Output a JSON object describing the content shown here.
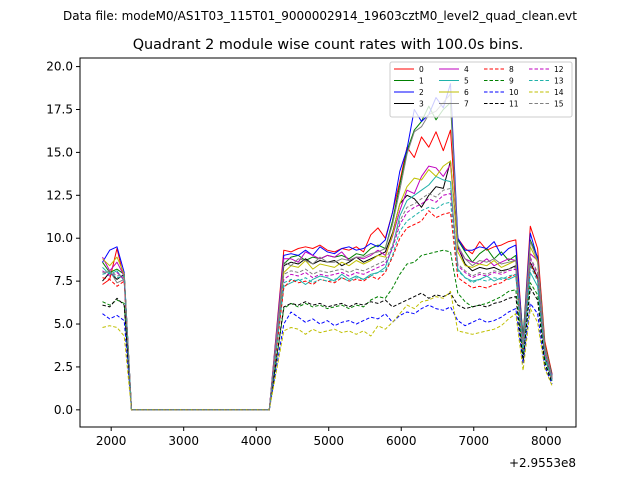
{
  "header": {
    "datafile": "Data file: modeM0/AS1T03_115T01_9000002914_19603cztM0_level2_quad_clean.evt",
    "title": "Quadrant 2 module wise count rates with 100.0s bins."
  },
  "chart_data": {
    "type": "line",
    "title": "Quadrant 2 module wise count rates with 100.0s bins.",
    "xlabel": "",
    "ylabel": "",
    "x_offset_label": "+2.9553e8",
    "xlim": [
      1570,
      8410
    ],
    "ylim": [
      -1.0,
      20.5
    ],
    "xticks": [
      2000,
      3000,
      4000,
      5000,
      6000,
      7000,
      8000
    ],
    "yticks": [
      0.0,
      2.5,
      5.0,
      7.5,
      10.0,
      12.5,
      15.0,
      17.5,
      20.0
    ],
    "ytick_labels": [
      "0.0",
      "2.5",
      "5.0",
      "7.5",
      "10.0",
      "12.5",
      "15.0",
      "17.5",
      "20.0"
    ],
    "grid": false,
    "legend": "top-right",
    "x": [
      1880,
      1980,
      2080,
      2180,
      2280,
      2380,
      2480,
      2580,
      2680,
      2780,
      2880,
      2980,
      3080,
      3180,
      3280,
      3380,
      3480,
      3580,
      3680,
      3780,
      3880,
      3980,
      4080,
      4180,
      4380,
      4480,
      4580,
      4680,
      4780,
      4880,
      4980,
      5080,
      5180,
      5280,
      5380,
      5480,
      5580,
      5680,
      5780,
      5880,
      5980,
      6080,
      6180,
      6280,
      6380,
      6480,
      6580,
      6680,
      6780,
      6880,
      6980,
      7080,
      7180,
      7280,
      7380,
      7480,
      7580,
      7680,
      7780,
      7880,
      7980,
      8080
    ],
    "series": [
      {
        "name": "0",
        "color": "#ff0000",
        "dash": "solid",
        "values": [
          7.3,
          7.6,
          9.4,
          7.6,
          0,
          0,
          0,
          0,
          0,
          0,
          0,
          0,
          0,
          0,
          0,
          0,
          0,
          0,
          0,
          0,
          0,
          0,
          0,
          0,
          9.3,
          9.2,
          9.4,
          9.5,
          9.4,
          9.6,
          9.3,
          9.2,
          9.4,
          9.3,
          9.5,
          9.2,
          10.2,
          10.6,
          10.0,
          11.5,
          13.3,
          15.3,
          14.7,
          15.9,
          15.3,
          16.2,
          15.1,
          16.3,
          10.0,
          9.4,
          9.1,
          9.8,
          9.3,
          9.5,
          9.6,
          9.8,
          9.9,
          4.1,
          10.7,
          9.4,
          4.0,
          2.1
        ]
      },
      {
        "name": "1",
        "color": "#008000",
        "dash": "solid",
        "values": [
          8.6,
          8.0,
          8.2,
          7.9,
          0,
          0,
          0,
          0,
          0,
          0,
          0,
          0,
          0,
          0,
          0,
          0,
          0,
          0,
          0,
          0,
          0,
          0,
          0,
          0,
          8.5,
          8.9,
          9.0,
          8.7,
          8.9,
          8.8,
          9.0,
          8.9,
          9.0,
          8.8,
          9.1,
          9.0,
          9.4,
          9.6,
          9.4,
          11.0,
          13.1,
          15.1,
          16.3,
          16.8,
          17.7,
          16.9,
          17.5,
          17.9,
          9.9,
          9.2,
          8.6,
          9.1,
          9.4,
          8.8,
          9.2,
          8.7,
          9.0,
          4.3,
          9.9,
          8.9,
          3.8,
          2.0
        ]
      },
      {
        "name": "2",
        "color": "#0000ff",
        "dash": "solid",
        "values": [
          8.6,
          9.3,
          9.5,
          8.0,
          0,
          0,
          0,
          0,
          0,
          0,
          0,
          0,
          0,
          0,
          0,
          0,
          0,
          0,
          0,
          0,
          0,
          0,
          0,
          0,
          9.0,
          9.1,
          9.0,
          9.3,
          9.0,
          9.5,
          9.2,
          9.1,
          9.4,
          9.5,
          9.3,
          9.4,
          9.7,
          9.5,
          9.9,
          11.5,
          13.9,
          15.2,
          17.5,
          16.8,
          17.2,
          18.2,
          17.6,
          19.0,
          10.0,
          9.3,
          9.3,
          9.5,
          9.4,
          9.8,
          9.0,
          9.4,
          9.6,
          3.9,
          10.3,
          8.8,
          3.6,
          2.0
        ]
      },
      {
        "name": "3",
        "color": "#000000",
        "dash": "solid",
        "values": [
          7.5,
          8.0,
          7.6,
          7.9,
          0,
          0,
          0,
          0,
          0,
          0,
          0,
          0,
          0,
          0,
          0,
          0,
          0,
          0,
          0,
          0,
          0,
          0,
          0,
          0,
          8.4,
          8.6,
          8.5,
          8.8,
          8.5,
          8.7,
          8.6,
          8.7,
          8.4,
          8.6,
          8.9,
          8.6,
          8.8,
          9.0,
          9.2,
          10.3,
          12.0,
          12.5,
          12.3,
          11.8,
          12.5,
          13.0,
          12.9,
          14.5,
          9.5,
          8.5,
          8.1,
          8.3,
          8.2,
          8.3,
          8.1,
          8.2,
          8.4,
          3.4,
          8.6,
          7.7,
          3.1,
          1.8
        ]
      },
      {
        "name": "4",
        "color": "#bf00bf",
        "dash": "solid",
        "values": [
          8.9,
          8.1,
          8.6,
          7.8,
          0,
          0,
          0,
          0,
          0,
          0,
          0,
          0,
          0,
          0,
          0,
          0,
          0,
          0,
          0,
          0,
          0,
          0,
          0,
          0,
          8.8,
          8.8,
          8.6,
          9.2,
          9.0,
          8.8,
          9.0,
          8.9,
          9.2,
          8.7,
          8.9,
          8.8,
          9.0,
          9.3,
          9.0,
          10.1,
          11.6,
          12.8,
          12.6,
          13.6,
          14.2,
          14.1,
          13.6,
          14.3,
          9.4,
          8.8,
          8.6,
          8.5,
          8.8,
          8.4,
          8.6,
          8.8,
          8.7,
          3.7,
          9.1,
          8.7,
          3.5,
          1.9
        ]
      },
      {
        "name": "5",
        "color": "#20b2aa",
        "dash": "solid",
        "values": [
          8.3,
          7.9,
          8.1,
          7.5,
          0,
          0,
          0,
          0,
          0,
          0,
          0,
          0,
          0,
          0,
          0,
          0,
          0,
          0,
          0,
          0,
          0,
          0,
          0,
          0,
          7.2,
          7.4,
          7.6,
          7.3,
          7.6,
          7.8,
          7.7,
          7.5,
          7.9,
          7.6,
          7.8,
          7.6,
          7.9,
          8.0,
          8.3,
          9.5,
          11.3,
          12.2,
          12.5,
          12.8,
          13.1,
          13.6,
          13.4,
          13.3,
          8.2,
          7.7,
          7.5,
          7.6,
          7.8,
          7.5,
          7.7,
          7.6,
          7.8,
          3.3,
          8.0,
          7.2,
          3.0,
          1.7
        ]
      },
      {
        "name": "6",
        "color": "#bfbf00",
        "dash": "solid",
        "values": [
          8.8,
          8.4,
          8.9,
          7.9,
          0,
          0,
          0,
          0,
          0,
          0,
          0,
          0,
          0,
          0,
          0,
          0,
          0,
          0,
          0,
          0,
          0,
          0,
          0,
          0,
          8.0,
          8.4,
          8.3,
          8.7,
          8.2,
          8.5,
          8.4,
          8.3,
          8.6,
          8.4,
          8.7,
          8.5,
          8.7,
          9.0,
          8.9,
          10.2,
          12.0,
          13.0,
          13.5,
          13.4,
          14.0,
          13.6,
          14.2,
          14.5,
          9.2,
          8.4,
          8.3,
          8.5,
          8.4,
          8.7,
          8.3,
          8.5,
          8.7,
          3.8,
          9.5,
          8.6,
          3.7,
          1.9
        ]
      },
      {
        "name": "7",
        "color": "#808080",
        "dash": "solid",
        "values": [
          7.9,
          8.1,
          7.4,
          7.6,
          0,
          0,
          0,
          0,
          0,
          0,
          0,
          0,
          0,
          0,
          0,
          0,
          0,
          0,
          0,
          0,
          0,
          0,
          0,
          0,
          8.6,
          8.4,
          8.8,
          8.7,
          8.5,
          8.9,
          8.6,
          8.6,
          8.8,
          8.7,
          8.9,
          8.9,
          9.1,
          9.2,
          9.4,
          10.8,
          12.8,
          14.9,
          16.2,
          16.5,
          17.2,
          17.4,
          17.9,
          18.4,
          9.6,
          8.8,
          8.4,
          8.7,
          8.6,
          8.8,
          8.5,
          8.6,
          8.7,
          3.9,
          9.8,
          8.7,
          3.7,
          1.9
        ]
      },
      {
        "name": "8",
        "color": "#ff0000",
        "dash": "dashed",
        "values": [
          7.7,
          7.6,
          7.2,
          7.5,
          0,
          0,
          0,
          0,
          0,
          0,
          0,
          0,
          0,
          0,
          0,
          0,
          0,
          0,
          0,
          0,
          0,
          0,
          0,
          0,
          7.1,
          7.6,
          7.4,
          7.5,
          7.3,
          7.6,
          7.5,
          7.4,
          7.7,
          7.5,
          7.6,
          7.5,
          7.8,
          7.6,
          8.0,
          8.9,
          10.0,
          10.6,
          10.8,
          11.0,
          11.6,
          11.2,
          11.4,
          11.5,
          7.7,
          7.4,
          7.1,
          7.2,
          7.1,
          7.3,
          7.4,
          7.7,
          7.9,
          3.4,
          8.5,
          7.6,
          3.2,
          1.7
        ]
      },
      {
        "name": "9",
        "color": "#008000",
        "dash": "dashed",
        "values": [
          6.3,
          6.1,
          6.4,
          6.2,
          0,
          0,
          0,
          0,
          0,
          0,
          0,
          0,
          0,
          0,
          0,
          0,
          0,
          0,
          0,
          0,
          0,
          0,
          0,
          0,
          5.9,
          6.2,
          6.0,
          6.2,
          6.0,
          6.1,
          5.9,
          6.0,
          6.1,
          5.9,
          6.1,
          6.0,
          6.4,
          6.6,
          6.5,
          7.1,
          7.9,
          8.5,
          8.6,
          9.0,
          9.1,
          9.2,
          9.3,
          9.2,
          6.8,
          6.3,
          6.0,
          6.1,
          6.2,
          6.4,
          6.6,
          6.9,
          7.0,
          3.0,
          7.4,
          6.7,
          2.8,
          1.6
        ]
      },
      {
        "name": "10",
        "color": "#0000ff",
        "dash": "dashed",
        "values": [
          5.6,
          5.3,
          5.5,
          5.2,
          0,
          0,
          0,
          0,
          0,
          0,
          0,
          0,
          0,
          0,
          0,
          0,
          0,
          0,
          0,
          0,
          0,
          0,
          0,
          0,
          5.0,
          5.7,
          5.4,
          5.1,
          5.3,
          5.0,
          5.2,
          4.9,
          5.1,
          5.2,
          5.0,
          5.2,
          5.4,
          5.3,
          5.6,
          5.1,
          5.5,
          5.7,
          5.6,
          5.9,
          6.1,
          5.9,
          5.8,
          6.0,
          5.2,
          4.9,
          5.1,
          5.3,
          5.1,
          5.2,
          5.4,
          5.7,
          5.9,
          2.7,
          6.2,
          5.6,
          2.5,
          1.5
        ]
      },
      {
        "name": "11",
        "color": "#000000",
        "dash": "dashed",
        "values": [
          6.1,
          6.0,
          6.5,
          6.1,
          0,
          0,
          0,
          0,
          0,
          0,
          0,
          0,
          0,
          0,
          0,
          0,
          0,
          0,
          0,
          0,
          0,
          0,
          0,
          0,
          6.0,
          6.2,
          6.1,
          6.3,
          6.1,
          6.2,
          6.0,
          6.1,
          6.2,
          6.0,
          6.2,
          6.1,
          6.3,
          6.2,
          6.4,
          6.0,
          6.2,
          6.4,
          6.6,
          6.8,
          6.5,
          6.7,
          6.6,
          6.8,
          6.1,
          5.9,
          6.0,
          6.1,
          6.0,
          6.2,
          6.3,
          6.5,
          6.6,
          2.9,
          7.1,
          6.4,
          2.7,
          1.6
        ]
      },
      {
        "name": "12",
        "color": "#bf00bf",
        "dash": "dashed",
        "values": [
          8.1,
          7.8,
          8.0,
          7.6,
          0,
          0,
          0,
          0,
          0,
          0,
          0,
          0,
          0,
          0,
          0,
          0,
          0,
          0,
          0,
          0,
          0,
          0,
          0,
          0,
          7.6,
          7.9,
          7.8,
          8.0,
          7.7,
          7.9,
          7.8,
          7.9,
          8.0,
          7.8,
          8.0,
          7.9,
          8.1,
          8.3,
          8.5,
          9.4,
          10.8,
          11.5,
          11.8,
          12.0,
          12.3,
          12.1,
          12.5,
          12.6,
          8.4,
          8.0,
          7.7,
          7.9,
          7.8,
          8.0,
          7.9,
          8.1,
          8.2,
          3.6,
          8.8,
          7.9,
          3.4,
          1.8
        ]
      },
      {
        "name": "13",
        "color": "#20b2aa",
        "dash": "dashed",
        "values": [
          7.9,
          8.0,
          7.7,
          7.8,
          0,
          0,
          0,
          0,
          0,
          0,
          0,
          0,
          0,
          0,
          0,
          0,
          0,
          0,
          0,
          0,
          0,
          0,
          0,
          0,
          7.4,
          7.6,
          7.5,
          7.7,
          7.4,
          7.6,
          7.5,
          7.6,
          7.7,
          7.5,
          7.7,
          7.6,
          7.8,
          8.0,
          8.1,
          9.0,
          10.4,
          11.0,
          11.3,
          11.6,
          11.8,
          11.7,
          12.0,
          12.1,
          8.1,
          7.7,
          7.4,
          7.6,
          7.5,
          7.7,
          7.6,
          7.8,
          7.9,
          3.4,
          8.4,
          7.5,
          3.2,
          1.7
        ]
      },
      {
        "name": "14",
        "color": "#bfbf00",
        "dash": "dashed",
        "values": [
          4.8,
          4.9,
          4.8,
          4.3,
          0,
          0,
          0,
          0,
          0,
          0,
          0,
          0,
          0,
          0,
          0,
          0,
          0,
          0,
          0,
          0,
          0,
          0,
          0,
          0,
          4.6,
          4.8,
          4.7,
          4.4,
          4.7,
          4.5,
          4.6,
          4.7,
          4.5,
          4.6,
          4.4,
          4.6,
          4.3,
          4.9,
          4.7,
          5.1,
          5.6,
          6.1,
          5.9,
          6.3,
          6.4,
          6.6,
          6.5,
          6.9,
          4.6,
          4.5,
          4.4,
          4.5,
          4.6,
          4.7,
          4.9,
          5.3,
          5.6,
          2.3,
          5.9,
          5.1,
          2.4,
          1.4
        ]
      },
      {
        "name": "15",
        "color": "#808080",
        "dash": "dashed",
        "values": [
          8.0,
          8.1,
          7.8,
          7.9,
          0,
          0,
          0,
          0,
          0,
          0,
          0,
          0,
          0,
          0,
          0,
          0,
          0,
          0,
          0,
          0,
          0,
          0,
          0,
          0,
          7.9,
          8.1,
          8.0,
          8.2,
          7.9,
          8.1,
          8.0,
          8.1,
          8.2,
          8.0,
          8.2,
          8.1,
          8.3,
          8.5,
          8.7,
          9.6,
          11.0,
          11.8,
          12.0,
          12.3,
          12.6,
          12.4,
          12.8,
          12.9,
          8.5,
          8.1,
          7.8,
          8.0,
          7.9,
          8.1,
          8.0,
          8.2,
          8.3,
          3.7,
          8.9,
          8.0,
          3.5,
          1.8
        ]
      }
    ]
  }
}
